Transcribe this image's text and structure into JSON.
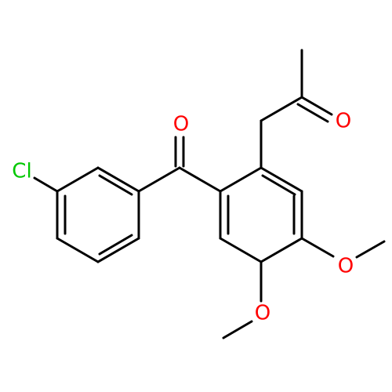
{
  "atoms": {
    "chlorine": "Cl",
    "ketone_oxygen": "O",
    "acetone_oxygen": "O",
    "methoxy_oxygen_right": "O",
    "methoxy_oxygen_bottom": "O"
  }
}
